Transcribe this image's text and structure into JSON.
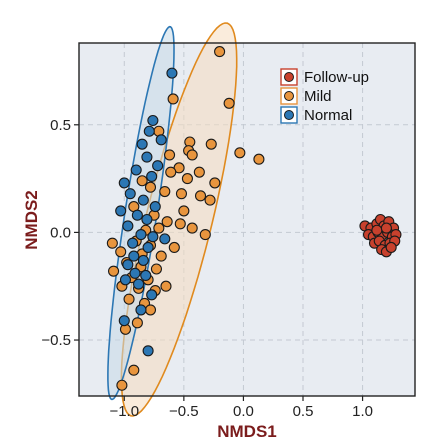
{
  "chart_data": {
    "type": "scatter",
    "title": "",
    "xlabel": "NMDS1",
    "ylabel": "NMDS2",
    "xlim": [
      -1.38,
      1.44
    ],
    "ylim": [
      -0.76,
      0.88
    ],
    "xticks": [
      -1.0,
      -0.5,
      0.0,
      0.5,
      1.0
    ],
    "xtick_labels": [
      "−1.0",
      "−0.5",
      "0.0",
      "0.5",
      "1.0"
    ],
    "yticks": [
      -0.5,
      0.0,
      0.5
    ],
    "ytick_labels": [
      "−0.5",
      "0.0",
      "0.5"
    ],
    "grid": true,
    "legend_position": "top-right",
    "background": "#e8ecf2",
    "series": [
      {
        "name": "Follow-up",
        "color": "#c8412d",
        "points": [
          [
            1.02,
            0.03
          ],
          [
            1.07,
            0.02
          ],
          [
            1.12,
            0.04
          ],
          [
            1.15,
            0.06
          ],
          [
            1.18,
            0.03
          ],
          [
            1.22,
            0.05
          ],
          [
            1.26,
            0.02
          ],
          [
            1.05,
            -0.01
          ],
          [
            1.09,
            -0.02
          ],
          [
            1.13,
            0.0
          ],
          [
            1.17,
            -0.01
          ],
          [
            1.21,
            0.0
          ],
          [
            1.25,
            -0.02
          ],
          [
            1.28,
            -0.01
          ],
          [
            1.1,
            -0.05
          ],
          [
            1.14,
            -0.04
          ],
          [
            1.19,
            -0.06
          ],
          [
            1.23,
            -0.05
          ],
          [
            1.27,
            -0.04
          ],
          [
            1.16,
            -0.08
          ],
          [
            1.2,
            -0.09
          ],
          [
            1.24,
            -0.07
          ],
          [
            1.12,
            0.01
          ],
          [
            1.2,
            0.02
          ]
        ]
      },
      {
        "name": "Mild",
        "color": "#e8953e",
        "points": [
          [
            -0.2,
            0.84
          ],
          [
            -0.59,
            0.62
          ],
          [
            -0.12,
            0.6
          ],
          [
            -0.71,
            0.47
          ],
          [
            -0.45,
            0.42
          ],
          [
            -0.62,
            0.36
          ],
          [
            -0.46,
            0.38
          ],
          [
            -0.43,
            0.36
          ],
          [
            -0.27,
            0.41
          ],
          [
            -0.03,
            0.37
          ],
          [
            0.13,
            0.34
          ],
          [
            -0.54,
            0.3
          ],
          [
            -0.61,
            0.28
          ],
          [
            -0.47,
            0.25
          ],
          [
            -0.37,
            0.28
          ],
          [
            -0.24,
            0.23
          ],
          [
            -0.85,
            0.24
          ],
          [
            -0.78,
            0.21
          ],
          [
            -0.66,
            0.19
          ],
          [
            -0.52,
            0.18
          ],
          [
            -0.36,
            0.17
          ],
          [
            -0.28,
            0.15
          ],
          [
            -0.5,
            0.1
          ],
          [
            -0.92,
            0.12
          ],
          [
            -0.75,
            0.08
          ],
          [
            -0.64,
            0.05
          ],
          [
            -0.53,
            0.04
          ],
          [
            -0.82,
            0.01
          ],
          [
            -0.71,
            0.02
          ],
          [
            -0.43,
            0.02
          ],
          [
            -0.32,
            -0.01
          ],
          [
            -1.1,
            -0.05
          ],
          [
            -0.9,
            -0.04
          ],
          [
            -0.78,
            -0.06
          ],
          [
            -0.58,
            -0.07
          ],
          [
            -1.03,
            -0.09
          ],
          [
            -0.85,
            -0.1
          ],
          [
            -0.69,
            -0.11
          ],
          [
            -0.98,
            -0.14
          ],
          [
            -0.86,
            -0.16
          ],
          [
            -0.73,
            -0.17
          ],
          [
            -1.09,
            -0.18
          ],
          [
            -0.94,
            -0.21
          ],
          [
            -0.8,
            -0.22
          ],
          [
            -1.02,
            -0.25
          ],
          [
            -0.88,
            -0.26
          ],
          [
            -0.74,
            -0.27
          ],
          [
            -0.65,
            -0.25
          ],
          [
            -0.96,
            -0.31
          ],
          [
            -0.83,
            -0.33
          ],
          [
            -0.78,
            -0.36
          ],
          [
            -0.89,
            -0.42
          ],
          [
            -0.99,
            -0.45
          ],
          [
            -0.92,
            -0.64
          ],
          [
            -1.02,
            -0.71
          ]
        ]
      },
      {
        "name": "Normal",
        "color": "#2c77b4",
        "points": [
          [
            -0.6,
            0.74
          ],
          [
            -0.76,
            0.52
          ],
          [
            -0.79,
            0.47
          ],
          [
            -0.85,
            0.41
          ],
          [
            -0.69,
            0.43
          ],
          [
            -0.81,
            0.35
          ],
          [
            -0.72,
            0.31
          ],
          [
            -0.9,
            0.29
          ],
          [
            -0.77,
            0.26
          ],
          [
            -1.0,
            0.23
          ],
          [
            -0.95,
            0.18
          ],
          [
            -0.84,
            0.15
          ],
          [
            -0.74,
            0.12
          ],
          [
            -1.03,
            0.1
          ],
          [
            -0.89,
            0.08
          ],
          [
            -0.81,
            0.06
          ],
          [
            -0.97,
            0.03
          ],
          [
            -0.86,
            -0.01
          ],
          [
            -0.76,
            -0.02
          ],
          [
            -0.66,
            -0.03
          ],
          [
            -0.93,
            -0.05
          ],
          [
            -0.8,
            -0.07
          ],
          [
            -0.92,
            -0.11
          ],
          [
            -0.84,
            -0.13
          ],
          [
            -0.97,
            -0.15
          ],
          [
            -0.91,
            -0.19
          ],
          [
            -0.82,
            -0.2
          ],
          [
            -0.99,
            -0.22
          ],
          [
            -0.88,
            -0.24
          ],
          [
            -0.77,
            -0.29
          ],
          [
            -0.86,
            -0.36
          ],
          [
            -1.0,
            -0.41
          ],
          [
            -0.8,
            -0.55
          ]
        ]
      }
    ],
    "ellipses": [
      {
        "series": "Mild",
        "center": [
          -0.54,
          0.06
        ],
        "rx": 1.0,
        "ry": 0.26,
        "angle_deg": 65,
        "fill": "#f6dcc0",
        "stroke": "#e08a1e"
      },
      {
        "series": "Normal",
        "center": [
          -0.86,
          0.09
        ],
        "rx": 0.9,
        "ry": 0.13,
        "angle_deg": 74,
        "fill": "#c6dbe8",
        "stroke": "#2c77b4"
      }
    ],
    "annotations": []
  }
}
